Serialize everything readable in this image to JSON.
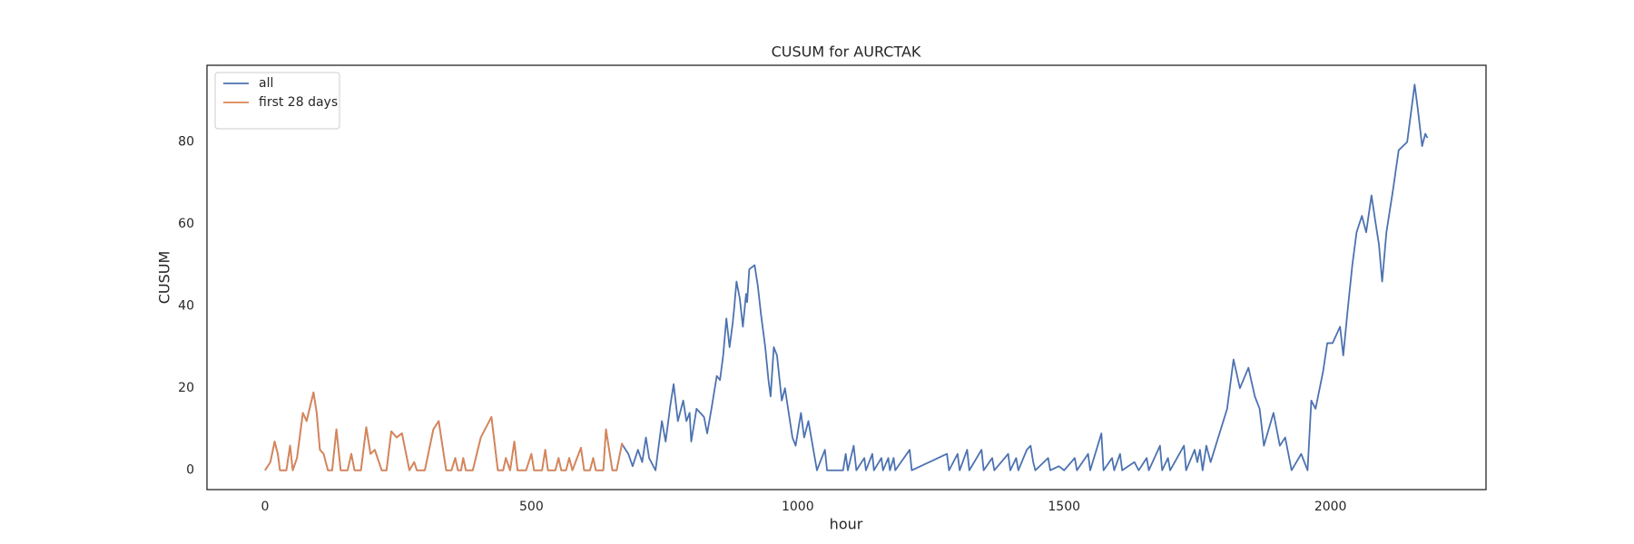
{
  "chart_data": {
    "type": "line",
    "title": "CUSUM for AURCTAK",
    "x_label": "hour",
    "y_label": "CUSUM",
    "xlim": [
      -109,
      2292
    ],
    "xticks": [
      0,
      500,
      1000,
      1500,
      2000
    ],
    "ylim": [
      -4.7,
      98.7
    ],
    "yticks": [
      0,
      20,
      40,
      60,
      80
    ],
    "grid": false,
    "legend": "upper left",
    "series": [
      {
        "name": "all",
        "color": "#4c72b0",
        "x": [
          0,
          10,
          18,
          24,
          28,
          40,
          47,
          52,
          60,
          71,
          78,
          91,
          97,
          103,
          110,
          118,
          126,
          134,
          142,
          155,
          162,
          168,
          180,
          190,
          198,
          206,
          219,
          228,
          237,
          247,
          257,
          271,
          280,
          285,
          300,
          316,
          326,
          340,
          350,
          357,
          362,
          368,
          372,
          377,
          390,
          405,
          425,
          437,
          447,
          452,
          460,
          468,
          474,
          490,
          500,
          505,
          520,
          526,
          531,
          545,
          551,
          556,
          565,
          571,
          577,
          593,
          599,
          610,
          616,
          621,
          635,
          640,
          652,
          660,
          670,
          672,
          682,
          690,
          700,
          708,
          715,
          721,
          733,
          745,
          752,
          761,
          767,
          775,
          785,
          791,
          797,
          800,
          810,
          824,
          830,
          838,
          848,
          854,
          860,
          866,
          872,
          878,
          881,
          885,
          891,
          897,
          903,
          905,
          909,
          919,
          925,
          931,
          939,
          945,
          949,
          955,
          961,
          970,
          976,
          990,
          996,
          1006,
          1012,
          1020,
          1036,
          1051,
          1055,
          1085,
          1090,
          1094,
          1105,
          1110,
          1125,
          1128,
          1140,
          1143,
          1157,
          1160,
          1170,
          1173,
          1180,
          1183,
          1210,
          1214,
          1280,
          1284,
          1300,
          1304,
          1318,
          1322,
          1345,
          1349,
          1365,
          1369,
          1395,
          1399,
          1410,
          1414,
          1430,
          1437,
          1442,
          1446,
          1470,
          1474,
          1490,
          1500,
          1520,
          1524,
          1545,
          1549,
          1570,
          1574,
          1590,
          1594,
          1605,
          1609,
          1632,
          1640,
          1655,
          1659,
          1680,
          1684,
          1695,
          1699,
          1725,
          1729,
          1745,
          1750,
          1755,
          1760,
          1767,
          1775,
          1806,
          1818,
          1830,
          1846,
          1858,
          1867,
          1875,
          1893,
          1905,
          1915,
          1927,
          1945,
          1957,
          1964,
          1972,
          1986,
          1994,
          2004,
          2018,
          2024,
          2033,
          2041,
          2049,
          2059,
          2067,
          2077,
          2085,
          2091,
          2097,
          2105,
          2117,
          2128,
          2144,
          2158,
          2164,
          2172,
          2178,
          2182
        ],
        "values": [
          0,
          2,
          7,
          4,
          0,
          0,
          6,
          0,
          3,
          14,
          12,
          19,
          14,
          5,
          4,
          0,
          0,
          10,
          0,
          0,
          4,
          0,
          0,
          10.5,
          4,
          5,
          0,
          0,
          9.5,
          8,
          9,
          0,
          2,
          0,
          0,
          10,
          12,
          0,
          0,
          3,
          0,
          0,
          3,
          0,
          0,
          8,
          13,
          0,
          0,
          3,
          0,
          7,
          0,
          0,
          4,
          0,
          0,
          5,
          0,
          0,
          3,
          0,
          0,
          3,
          0,
          5.5,
          0,
          0,
          3,
          0,
          0,
          10,
          0,
          0,
          6.5,
          6,
          4,
          1,
          5,
          2,
          8,
          3,
          0,
          12,
          7,
          16,
          21,
          12,
          17,
          12,
          14,
          7,
          15,
          13,
          9,
          15,
          23,
          22,
          28,
          37,
          30,
          36,
          40,
          46,
          42,
          35,
          43,
          41,
          49,
          50,
          45,
          38,
          30,
          22,
          18,
          30,
          28,
          17,
          20,
          8,
          6,
          14,
          8,
          12,
          0,
          5,
          0,
          0,
          4,
          0,
          6,
          0,
          3,
          0,
          4,
          0,
          3,
          0,
          3,
          0,
          3,
          0,
          5,
          0,
          4,
          0,
          4,
          0,
          5,
          0,
          5,
          0,
          3,
          0,
          4,
          0,
          3,
          0,
          5,
          6,
          2,
          0,
          3,
          0,
          1,
          0,
          3,
          0,
          4,
          0,
          9,
          0,
          3,
          0,
          4,
          0,
          2,
          0,
          3,
          0,
          6,
          0,
          3,
          0,
          6,
          0,
          5,
          2,
          5,
          0,
          6,
          2,
          15,
          27,
          20,
          25,
          18,
          15,
          6,
          14,
          6,
          8,
          0,
          4,
          0,
          17,
          15,
          24,
          31,
          31,
          35,
          28,
          40,
          50,
          58,
          62,
          58,
          67,
          60,
          55,
          46,
          58,
          68,
          78,
          80,
          94,
          88,
          79,
          82,
          81
        ]
      },
      {
        "name": "first 28 days",
        "color": "#dd8452",
        "x": [
          0,
          10,
          18,
          24,
          28,
          40,
          47,
          52,
          60,
          71,
          78,
          91,
          97,
          103,
          110,
          118,
          126,
          134,
          142,
          155,
          162,
          168,
          180,
          190,
          198,
          206,
          219,
          228,
          237,
          247,
          257,
          271,
          280,
          285,
          300,
          316,
          326,
          340,
          350,
          357,
          362,
          368,
          372,
          377,
          390,
          405,
          425,
          437,
          447,
          452,
          460,
          468,
          474,
          490,
          500,
          505,
          520,
          526,
          531,
          545,
          551,
          556,
          565,
          571,
          577,
          593,
          599,
          610,
          616,
          621,
          635,
          640,
          652,
          660,
          670,
          672
        ],
        "values": [
          0,
          2,
          7,
          4,
          0,
          0,
          6,
          0,
          3,
          14,
          12,
          19,
          14,
          5,
          4,
          0,
          0,
          10,
          0,
          0,
          4,
          0,
          0,
          10.5,
          4,
          5,
          0,
          0,
          9.5,
          8,
          9,
          0,
          2,
          0,
          0,
          10,
          12,
          0,
          0,
          3,
          0,
          0,
          3,
          0,
          0,
          8,
          13,
          0,
          0,
          3,
          0,
          7,
          0,
          0,
          4,
          0,
          0,
          5,
          0,
          0,
          3,
          0,
          0,
          3,
          0,
          5.5,
          0,
          0,
          3,
          0,
          0,
          10,
          0,
          0,
          6.5,
          6
        ]
      }
    ]
  }
}
